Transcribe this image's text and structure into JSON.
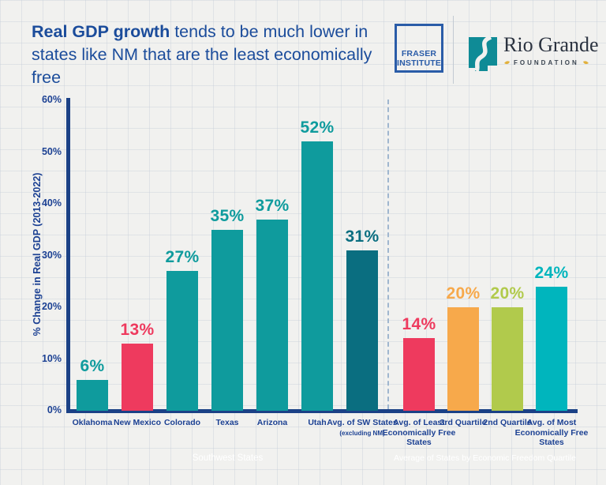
{
  "page": {
    "title_bold": "Real GDP growth",
    "title_rest": " tends to be much lower in states like NM that are the least economically free"
  },
  "logos": {
    "fraser": {
      "line1": "FRASER",
      "line2": "INSTITUTE"
    },
    "rio_grande": {
      "name": "Rio Grande",
      "subtitle": "FOUNDATION"
    }
  },
  "colors": {
    "teal": "#0f9b9d",
    "dark_teal": "#0a6e80",
    "red": "#ee3a5e",
    "orange": "#f7a94b",
    "green": "#b1ca4c",
    "cyan": "#00b5bd",
    "navy": "#1c4193",
    "band_navy": "#12418c",
    "band_purple": "#8a92bd"
  },
  "chart_data": {
    "type": "bar",
    "title": "Real GDP growth tends to be much lower in states like NM that are the least economically free",
    "xlabel": "",
    "ylabel": "% Change in Real GDP (2013-2022)",
    "ylim": [
      0,
      60
    ],
    "yticks": [
      "0%",
      "10%",
      "20%",
      "30%",
      "40%",
      "50%",
      "60%"
    ],
    "grid": false,
    "legend": false,
    "groups": [
      {
        "label": "Southwest States",
        "color": "#12418c"
      },
      {
        "label": "Average of States by Economic Freedom Quartile",
        "color": "#8a92bd"
      }
    ],
    "categories": [
      "Oklahoma",
      "New Mexico",
      "Colorado",
      "Texas",
      "Arizona",
      "Utah",
      "Avg. of SW States (excluding NM)",
      "Avg. of Least Economically Free States",
      "3rd Quartile",
      "2nd Quartile",
      "Avg. of Most Economically Free States"
    ],
    "values": [
      6,
      13,
      27,
      35,
      37,
      52,
      31,
      14,
      20,
      20,
      24
    ],
    "bars": [
      {
        "category": "Oklahoma",
        "value": 6,
        "display": "6%",
        "color": "#0f9b9d",
        "group": 0
      },
      {
        "category": "New Mexico",
        "value": 13,
        "display": "13%",
        "color": "#ee3a5e",
        "group": 0
      },
      {
        "category": "Colorado",
        "value": 27,
        "display": "27%",
        "color": "#0f9b9d",
        "group": 0
      },
      {
        "category": "Texas",
        "value": 35,
        "display": "35%",
        "color": "#0f9b9d",
        "group": 0
      },
      {
        "category": "Arizona",
        "value": 37,
        "display": "37%",
        "color": "#0f9b9d",
        "group": 0
      },
      {
        "category": "Utah",
        "value": 52,
        "display": "52%",
        "color": "#0f9b9d",
        "group": 0
      },
      {
        "category": "Avg. of SW States",
        "subcategory": "(excluding NM)",
        "value": 31,
        "display": "31%",
        "color": "#0a6e80",
        "group": 0
      },
      {
        "category": "Avg. of Least Economically Free States",
        "value": 14,
        "display": "14%",
        "color": "#ee3a5e",
        "group": 1
      },
      {
        "category": "3rd Quartile",
        "value": 20,
        "display": "20%",
        "color": "#f7a94b",
        "group": 1
      },
      {
        "category": "2nd Quartile",
        "value": 20,
        "display": "20%",
        "color": "#b1ca4c",
        "group": 1
      },
      {
        "category": "Avg. of Most Economically Free States",
        "value": 24,
        "display": "24%",
        "color": "#00b5bd",
        "group": 1
      }
    ]
  }
}
